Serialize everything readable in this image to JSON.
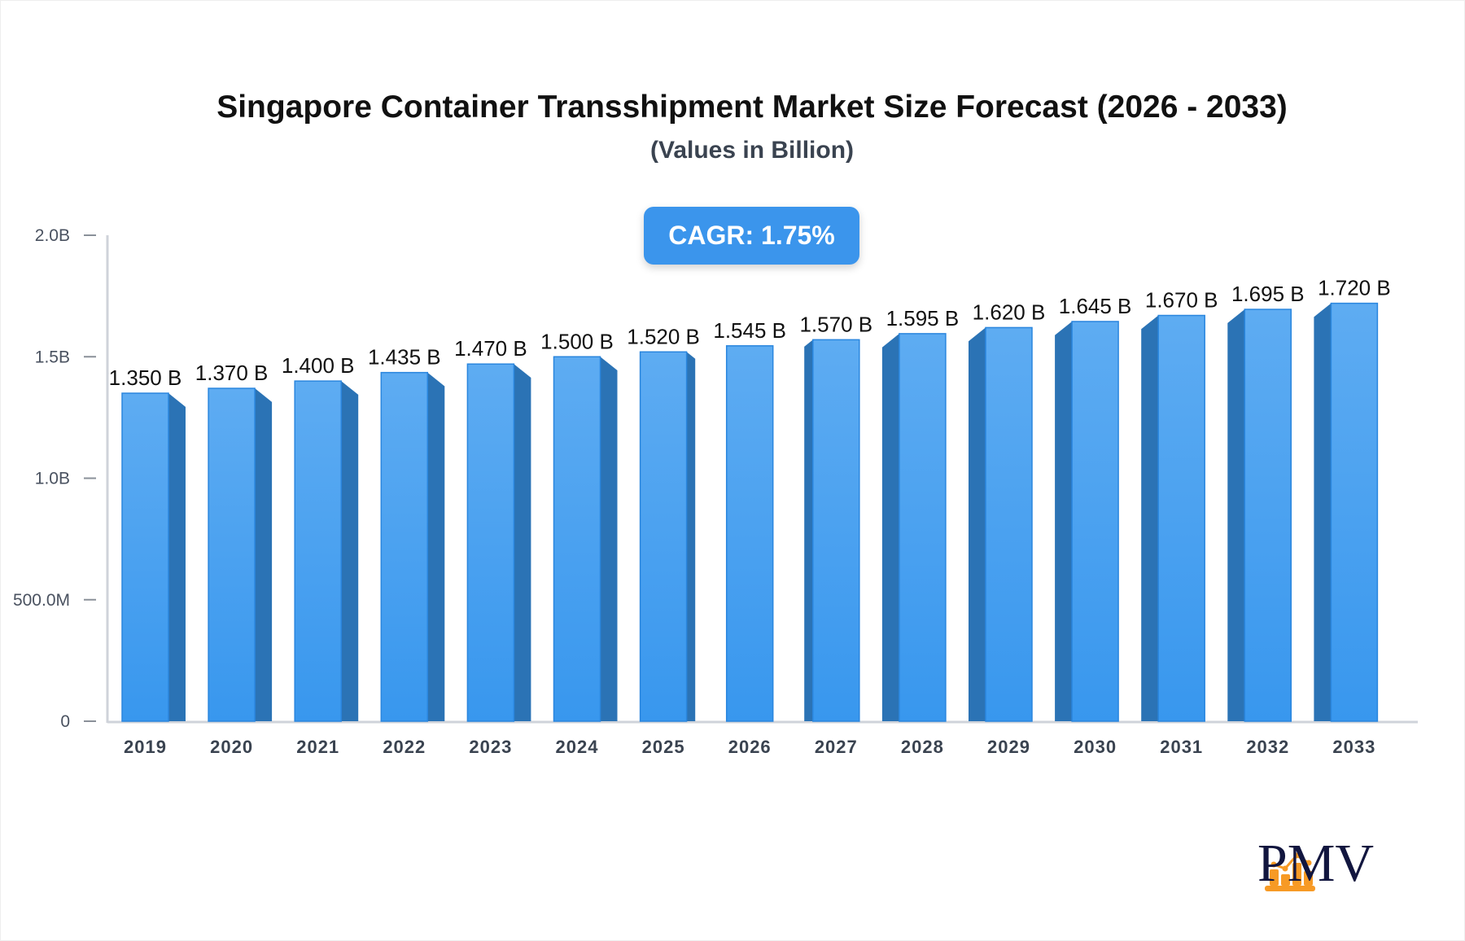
{
  "chart_data": {
    "type": "bar",
    "title": "Singapore Container Transshipment Market Size Forecast (2026 - 2033)",
    "subtitle": "(Values in Billion)",
    "annotation": "CAGR: 1.75%",
    "categories": [
      "2019",
      "2020",
      "2021",
      "2022",
      "2023",
      "2024",
      "2025",
      "2026",
      "2027",
      "2028",
      "2029",
      "2030",
      "2031",
      "2032",
      "2033"
    ],
    "values": [
      1.35,
      1.37,
      1.4,
      1.435,
      1.47,
      1.5,
      1.52,
      1.545,
      1.57,
      1.595,
      1.62,
      1.645,
      1.67,
      1.695,
      1.72
    ],
    "data_labels": [
      "1.350 B",
      "1.370 B",
      "1.400 B",
      "1.435 B",
      "1.470 B",
      "1.500 B",
      "1.520 B",
      "1.545 B",
      "1.570 B",
      "1.595 B",
      "1.620 B",
      "1.645 B",
      "1.670 B",
      "1.695 B",
      "1.720 B"
    ],
    "ylim": [
      0,
      2.0
    ],
    "yticks": [
      0,
      0.5,
      1.0,
      1.5,
      2.0
    ],
    "ytick_labels": [
      "0",
      "500.0M",
      "1.0B",
      "1.5B",
      "2.0B"
    ],
    "xlabel": "",
    "ylabel": "",
    "grid": false,
    "colors": {
      "bar_front_top": "#5eacf2",
      "bar_front_bottom": "#3897ee",
      "bar_side": "#2b73b5",
      "bar_edge": "#2a86de",
      "accent": "#3b95ec"
    }
  },
  "logo": {
    "text": "PMV",
    "icon": "bar-chart-growth-icon",
    "icon_color": "#f79a25",
    "text_color": "#12163f"
  }
}
